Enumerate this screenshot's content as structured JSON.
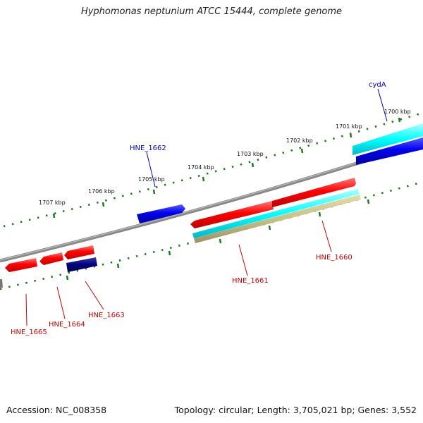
{
  "title": "Hyphomonas neptunium ATCC 15444, complete genome",
  "footer": {
    "accession": "Accession: NC_008358",
    "summary": "Topology: circular; Length: 3,705,021 bp; Genes: 3,552"
  },
  "scale_labels": [
    "1700 kbp",
    "1701 kbp",
    "1702 kbp",
    "1703 kbp",
    "1704 kbp",
    "1705 kbp",
    "1706 kbp",
    "1707 kbp"
  ],
  "genes": {
    "cydA": "cydA",
    "hne1660": "HNE_1660",
    "hne1661": "HNE_1661",
    "hne1662": "HNE_1662",
    "hne1663": "HNE_1663",
    "hne1664": "HNE_1664",
    "hne1665": "HNE_1665"
  },
  "colors": {
    "backbone": "#8a8a8a",
    "ticks": "#1a7a1a",
    "red_feature": "#ff0000",
    "blue_feature": "#0000ee",
    "navy_feature": "#000080",
    "cyan_feature": "#00ffff",
    "khaki_feature": "#c8c08a",
    "label_red": "#cc0000",
    "label_blue": "#0000cc"
  }
}
